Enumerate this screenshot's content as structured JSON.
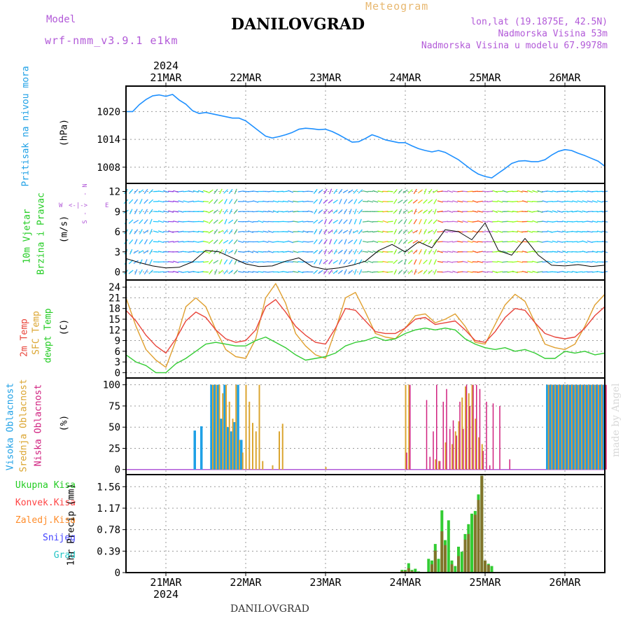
{
  "header": {
    "model_label": "Model",
    "model_value": "wrf-nmm_v3.9.1 e1km",
    "station": "DANILOVGRAD",
    "meteogram": "Meteogram",
    "lonlat": "lon,lat (19.1875E, 42.5N)",
    "altitude": "Nadmorska Visina 53m",
    "model_altitude": "Nadmorska Visina u modelu 67.9978m"
  },
  "footer": {
    "station": "DANILOVGRAD",
    "credit": "made by Angel"
  },
  "time_axis": {
    "year": "2024",
    "days": [
      "21MAR",
      "22MAR",
      "23MAR",
      "24MAR",
      "25MAR",
      "26MAR"
    ],
    "start_hour": 12,
    "end_hour": 156
  },
  "panel_labels": {
    "pressure": {
      "title": "Pritisak na nivou mora",
      "unit": "(hPa)"
    },
    "wind": {
      "title1": "10m Vjetar",
      "title2": "Brzina i Pravac",
      "unit": "(m/s)",
      "compass_n": "N",
      "compass_e": "E",
      "compass_w": "W",
      "compass_s": "S"
    },
    "temp": {
      "t2m": "2m Temp",
      "sfc": "SFC Temp",
      "dew": "dewpt Temp",
      "unit": "(C)"
    },
    "cloud": {
      "high": "Visoka Oblacnost",
      "mid": "Srednja Oblacnost",
      "low": "Niska Oblacnost",
      "unit": "(%)"
    },
    "precip": {
      "total": "Ukupna Kisa",
      "conv": "Konvek.Kisa",
      "frz": "Zaledj.Kisa",
      "snow": "Snijeg",
      "grad": "Grad",
      "unit": "1hr Precip (mm)"
    }
  },
  "colors": {
    "pressure": "#1e90ff",
    "t2m": "#e8443a",
    "sfc": "#e0a030",
    "dew": "#33cc33",
    "cloud_high": "#1ea0e6",
    "cloud_mid": "#dba530",
    "cloud_low": "#d0207f",
    "precip_total": "#33cc33",
    "precip_conv": "#ff4444",
    "precip_frz": "#ff8c2a",
    "snow": "#4444ff",
    "grad": "#22c4c4",
    "label_violet": "#b25ad8",
    "label_green": "#22cc22",
    "label_cyan": "#1ea0e6",
    "meteogram_title": "#e8b870"
  },
  "chart_data": [
    {
      "type": "line",
      "title": "Pritisak na nivou mora",
      "ylabel": "(hPa)",
      "yticks": [
        1008,
        1014,
        1020
      ],
      "ylim": [
        1004.5,
        1025.5
      ],
      "series": [
        {
          "name": "Pritisak na nivou mora",
          "x": [
            12,
            14,
            16,
            18,
            20,
            22,
            24,
            26,
            28,
            30,
            32,
            34,
            36,
            38,
            40,
            42,
            44,
            46,
            48,
            50,
            52,
            54,
            56,
            58,
            60,
            62,
            64,
            66,
            68,
            70,
            72,
            74,
            76,
            78,
            80,
            82,
            84,
            86,
            88,
            90,
            92,
            94,
            96,
            98,
            100,
            102,
            104,
            106,
            108,
            110,
            112,
            114,
            116,
            118,
            120,
            122,
            124,
            126,
            128,
            130,
            132,
            134,
            136,
            138,
            140,
            142,
            144,
            146,
            148,
            150,
            152,
            154,
            156
          ],
          "values": [
            1020.0,
            1020.0,
            1021.5,
            1022.6,
            1023.4,
            1023.6,
            1023.3,
            1023.7,
            1022.5,
            1021.6,
            1020.2,
            1019.6,
            1019.8,
            1019.5,
            1019.2,
            1018.9,
            1018.6,
            1018.6,
            1018.0,
            1016.9,
            1015.8,
            1014.7,
            1014.3,
            1014.6,
            1015.0,
            1015.5,
            1016.2,
            1016.4,
            1016.3,
            1016.1,
            1016.2,
            1015.7,
            1015.0,
            1014.2,
            1013.4,
            1013.5,
            1014.2,
            1015.0,
            1014.5,
            1013.9,
            1013.6,
            1013.3,
            1013.3,
            1012.6,
            1012.0,
            1011.6,
            1011.3,
            1011.6,
            1011.2,
            1010.4,
            1009.6,
            1008.5,
            1007.4,
            1006.5,
            1006.0,
            1005.7,
            1006.7,
            1007.7,
            1008.8,
            1009.3,
            1009.4,
            1009.2,
            1009.2,
            1009.6,
            1010.6,
            1011.4,
            1011.8,
            1011.6,
            1011.0,
            1010.5,
            1009.9,
            1009.3,
            1008.2
          ]
        }
      ]
    },
    {
      "type": "line",
      "title": "10m Vjetar Brzina i Pravac",
      "ylabel": "(m/s)",
      "yticks": [
        0,
        3,
        6,
        9,
        12
      ],
      "ylim": [
        -1.2,
        13.2
      ],
      "series": [
        {
          "name": "10m Vjetar",
          "x": [
            12,
            16,
            20,
            24,
            28,
            32,
            36,
            40,
            44,
            48,
            52,
            56,
            60,
            64,
            68,
            72,
            76,
            80,
            84,
            88,
            92,
            96,
            100,
            104,
            108,
            112,
            116,
            120,
            124,
            128,
            132,
            136,
            140,
            144,
            148,
            152,
            156
          ],
          "values": [
            2.0,
            1.4,
            0.9,
            0.6,
            0.7,
            1.5,
            3.2,
            3.0,
            2.1,
            1.2,
            0.8,
            0.9,
            1.6,
            2.1,
            0.8,
            0.4,
            0.6,
            1.0,
            1.6,
            3.2,
            4.1,
            3.0,
            4.5,
            3.6,
            6.3,
            6.0,
            4.8,
            7.3,
            3.2,
            2.5,
            5.0,
            2.5,
            1.0,
            0.9,
            1.1,
            0.8,
            1.0
          ]
        }
      ]
    },
    {
      "type": "line",
      "title": "Temp",
      "ylabel": "(C)",
      "yticks": [
        0,
        3,
        6,
        9,
        12,
        15,
        18,
        21,
        24
      ],
      "ylim": [
        -1.5,
        26
      ],
      "series": [
        {
          "name": "2m Temp",
          "x": [
            12,
            15,
            18,
            21,
            24,
            27,
            30,
            33,
            36,
            39,
            42,
            45,
            48,
            51,
            54,
            57,
            60,
            63,
            66,
            69,
            72,
            75,
            78,
            81,
            84,
            87,
            90,
            93,
            96,
            99,
            102,
            105,
            108,
            111,
            114,
            117,
            120,
            123,
            126,
            129,
            132,
            135,
            138,
            141,
            144,
            147,
            150,
            153,
            156
          ],
          "values": [
            17.5,
            14.5,
            10.5,
            7.5,
            5.5,
            9.5,
            14.5,
            17,
            15.5,
            12,
            9.5,
            8.5,
            9.0,
            12,
            18.5,
            20.5,
            17,
            13,
            10.5,
            8.5,
            8.0,
            12.5,
            18.0,
            17.5,
            14.5,
            11.5,
            11,
            11,
            12.5,
            15.0,
            15.5,
            13.5,
            14,
            14.5,
            12,
            9.0,
            8.5,
            11.5,
            15.5,
            18,
            17.5,
            14,
            11,
            10,
            9.5,
            10,
            12.5,
            16,
            18.5
          ]
        },
        {
          "name": "SFC Temp",
          "x": [
            12,
            15,
            18,
            21,
            24,
            27,
            30,
            33,
            36,
            39,
            42,
            45,
            48,
            51,
            54,
            57,
            60,
            63,
            66,
            69,
            72,
            75,
            78,
            81,
            84,
            87,
            90,
            93,
            96,
            99,
            102,
            105,
            108,
            111,
            114,
            117,
            120,
            123,
            126,
            129,
            132,
            135,
            138,
            141,
            144,
            147,
            150,
            153,
            156
          ],
          "values": [
            21,
            13,
            6.5,
            3.5,
            1.5,
            9,
            18.5,
            21,
            18.5,
            12,
            6.5,
            4.5,
            4.0,
            9.5,
            21,
            25,
            19.5,
            11,
            7.5,
            5,
            4.0,
            12,
            21,
            22.5,
            17,
            11,
            10,
            9.5,
            12.5,
            16.0,
            16.5,
            14,
            15,
            16.5,
            13,
            8.5,
            8.0,
            13.5,
            19,
            22,
            20,
            14,
            8,
            7,
            6.5,
            8,
            13,
            19,
            22
          ]
        },
        {
          "name": "dewpt Temp",
          "x": [
            12,
            15,
            18,
            21,
            24,
            27,
            30,
            33,
            36,
            39,
            42,
            45,
            48,
            51,
            54,
            57,
            60,
            63,
            66,
            69,
            72,
            75,
            78,
            81,
            84,
            87,
            90,
            93,
            96,
            99,
            102,
            105,
            108,
            111,
            114,
            117,
            120,
            123,
            126,
            129,
            132,
            135,
            138,
            141,
            144,
            147,
            150,
            153,
            156
          ],
          "values": [
            5,
            3,
            2,
            0,
            0,
            2.5,
            4,
            6,
            8,
            8.5,
            8,
            7.5,
            7.5,
            9,
            10,
            8.5,
            7,
            5,
            3.5,
            4,
            4.5,
            5.5,
            7.5,
            8.5,
            9,
            10,
            9,
            9.5,
            11,
            12.0,
            12.5,
            12,
            12.5,
            12,
            9.5,
            8,
            7,
            6.5,
            7,
            6,
            6.5,
            5.5,
            4,
            4,
            6,
            5.5,
            6,
            5,
            5.5
          ]
        }
      ]
    },
    {
      "type": "bar",
      "title": "Oblacnost",
      "ylabel": "(%)",
      "yticks": [
        0,
        25,
        50,
        75,
        100
      ],
      "ylim": [
        -6,
        108
      ],
      "series": [
        {
          "name": "Visoka Oblacnost",
          "x": [
            33,
            35,
            38,
            39,
            40,
            41,
            42,
            43,
            44,
            45,
            46,
            47,
            48,
            49,
            50,
            51,
            52
          ],
          "values": [
            46,
            51,
            100,
            100,
            100,
            60,
            100,
            50,
            45,
            56,
            100,
            35,
            0,
            0,
            0,
            0,
            0
          ]
        },
        {
          "name": "Srednja Oblacnost",
          "x": [
            38,
            39,
            40,
            41,
            42,
            43,
            44,
            45,
            46,
            47,
            48,
            49,
            50,
            51,
            52,
            53,
            56,
            58,
            59,
            72,
            96,
            97,
            105,
            106,
            108,
            110,
            111,
            112,
            113,
            114,
            115,
            116,
            117,
            118,
            119
          ],
          "values": [
            100,
            100,
            100,
            90,
            100,
            80,
            60,
            100,
            35,
            20,
            100,
            80,
            55,
            45,
            100,
            10,
            5,
            45,
            54,
            3,
            100,
            100,
            12,
            10,
            32,
            30,
            45,
            57,
            85,
            98,
            90,
            100,
            60,
            38,
            30
          ]
        },
        {
          "name": "Niska Oblacnost",
          "x": [
            96,
            97,
            102,
            103,
            104,
            105,
            106,
            107,
            108,
            109,
            110,
            111,
            112,
            113,
            114,
            115,
            116,
            117,
            118,
            119,
            120,
            121,
            122,
            124,
            127
          ],
          "values": [
            20,
            100,
            82,
            15,
            45,
            100,
            10,
            80,
            95,
            48,
            58,
            40,
            80,
            48,
            100,
            75,
            100,
            100,
            95,
            22,
            80,
            5,
            78,
            75,
            12
          ]
        }
      ],
      "overcast_ranges": [
        [
          139,
          156
        ]
      ]
    },
    {
      "type": "bar",
      "title": "1hr Precip",
      "ylabel": "1hr Precip (mm)",
      "yticks": [
        0,
        0.39,
        0.78,
        1.17,
        1.56
      ],
      "ylim": [
        0,
        1.78
      ],
      "series": [
        {
          "name": "Ukupna Kisa",
          "x": [
            95,
            96,
            97,
            98,
            99,
            100,
            103,
            104,
            105,
            106,
            107,
            108,
            109,
            110,
            111,
            112,
            113,
            114,
            115,
            116,
            117,
            118,
            119,
            120,
            121,
            122
          ],
          "values": [
            0.05,
            0.05,
            0.17,
            0.05,
            0.07,
            0.02,
            0.25,
            0.22,
            0.52,
            0.25,
            1.13,
            0.59,
            0.95,
            0.22,
            0.12,
            0.47,
            0.38,
            0.7,
            0.88,
            1.07,
            1.12,
            1.42,
            1.76,
            0.22,
            0.16,
            0.12
          ]
        },
        {
          "name": "Konvek.Kisa",
          "x": [
            95,
            96,
            97,
            98,
            104,
            105,
            107,
            108,
            110,
            112,
            114,
            115,
            117,
            118,
            119,
            120,
            121
          ],
          "values": [
            0.03,
            0.03,
            0.08,
            0.03,
            0.15,
            0.4,
            0.75,
            0.5,
            0.15,
            0.3,
            0.6,
            0.7,
            1.05,
            1.32,
            1.76,
            0.22,
            0.14
          ]
        },
        {
          "name": "Zaledj.Kisa",
          "x": [],
          "values": []
        },
        {
          "name": "Snijeg",
          "x": [],
          "values": []
        },
        {
          "name": "Grad",
          "x": [],
          "values": []
        }
      ]
    }
  ]
}
